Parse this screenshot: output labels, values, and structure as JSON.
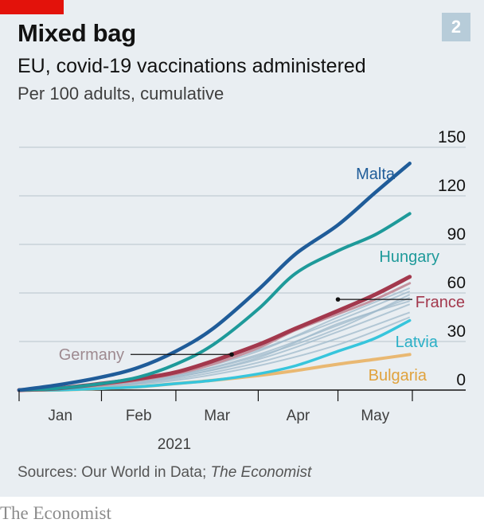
{
  "header": {
    "title": "Mixed bag",
    "chart_number": "2",
    "subtitle": "EU, covid-19 vaccinations administered",
    "units": "Per 100 adults, cumulative"
  },
  "footer": {
    "source_prefix": "Sources: Our World in Data; ",
    "source_italic": "The Economist",
    "brand": "The Economist"
  },
  "colors": {
    "brand_red": "#e3120b",
    "Malta": "#1f5c99",
    "Hungary": "#1e9a9a",
    "France": "#a3384d",
    "France_label": "#a3384d",
    "Germany": "#c4939f",
    "Germany_label": "#9e8a90",
    "Latvia": "#37c5dc",
    "Latvia_label": "#2ab0c7",
    "Bulgaria": "#e9b872",
    "Bulgaria_label": "#e0a23d",
    "others": "#9fb9cb"
  },
  "chart_data": {
    "type": "line",
    "x_axis": {
      "ticks": [
        "Jan",
        "Feb",
        "Mar",
        "Apr",
        "May"
      ],
      "year_label": "2021"
    },
    "ylim": [
      0,
      150
    ],
    "yticks": [
      0,
      30,
      60,
      90,
      120,
      150
    ],
    "grid": true,
    "series": [
      {
        "name": "Malta",
        "points": [
          [
            "2021-01-01",
            0
          ],
          [
            "2021-01-15",
            3
          ],
          [
            "2021-02-01",
            8
          ],
          [
            "2021-02-15",
            14
          ],
          [
            "2021-03-01",
            24
          ],
          [
            "2021-03-15",
            38
          ],
          [
            "2021-04-01",
            62
          ],
          [
            "2021-04-15",
            84
          ],
          [
            "2021-05-01",
            102
          ],
          [
            "2021-05-15",
            122
          ],
          [
            "2021-05-28",
            140
          ]
        ]
      },
      {
        "name": "Hungary",
        "points": [
          [
            "2021-01-01",
            0
          ],
          [
            "2021-01-15",
            1
          ],
          [
            "2021-02-01",
            4
          ],
          [
            "2021-02-15",
            8
          ],
          [
            "2021-03-01",
            16
          ],
          [
            "2021-03-15",
            28
          ],
          [
            "2021-04-01",
            50
          ],
          [
            "2021-04-15",
            72
          ],
          [
            "2021-05-01",
            86
          ],
          [
            "2021-05-15",
            96
          ],
          [
            "2021-05-28",
            109
          ]
        ]
      },
      {
        "name": "France",
        "points": [
          [
            "2021-01-01",
            0
          ],
          [
            "2021-01-15",
            1
          ],
          [
            "2021-02-01",
            4
          ],
          [
            "2021-02-15",
            7
          ],
          [
            "2021-03-01",
            11
          ],
          [
            "2021-03-15",
            18
          ],
          [
            "2021-04-01",
            28
          ],
          [
            "2021-04-15",
            38
          ],
          [
            "2021-05-01",
            49
          ],
          [
            "2021-05-15",
            59
          ],
          [
            "2021-05-28",
            70
          ]
        ]
      },
      {
        "name": "Germany",
        "points": [
          [
            "2021-01-01",
            0
          ],
          [
            "2021-01-15",
            1
          ],
          [
            "2021-02-01",
            3
          ],
          [
            "2021-02-15",
            6
          ],
          [
            "2021-03-01",
            10
          ],
          [
            "2021-03-15",
            16
          ],
          [
            "2021-04-01",
            26
          ],
          [
            "2021-04-15",
            37
          ],
          [
            "2021-05-01",
            47
          ],
          [
            "2021-05-15",
            56
          ],
          [
            "2021-05-28",
            66
          ]
        ]
      },
      {
        "name": "Latvia",
        "points": [
          [
            "2021-01-01",
            0
          ],
          [
            "2021-01-15",
            0
          ],
          [
            "2021-02-01",
            1
          ],
          [
            "2021-02-15",
            2
          ],
          [
            "2021-03-01",
            4
          ],
          [
            "2021-03-15",
            6
          ],
          [
            "2021-04-01",
            10
          ],
          [
            "2021-04-15",
            15
          ],
          [
            "2021-05-01",
            24
          ],
          [
            "2021-05-15",
            32
          ],
          [
            "2021-05-28",
            43
          ]
        ]
      },
      {
        "name": "Bulgaria",
        "points": [
          [
            "2021-01-01",
            0
          ],
          [
            "2021-01-15",
            0
          ],
          [
            "2021-02-01",
            1
          ],
          [
            "2021-02-15",
            2
          ],
          [
            "2021-03-01",
            4
          ],
          [
            "2021-03-15",
            6
          ],
          [
            "2021-04-01",
            9
          ],
          [
            "2021-04-15",
            12
          ],
          [
            "2021-05-01",
            16
          ],
          [
            "2021-05-15",
            19
          ],
          [
            "2021-05-28",
            22
          ]
        ]
      }
    ],
    "other_series": [
      {
        "points": [
          [
            "2021-01-01",
            0
          ],
          [
            "2021-02-01",
            4
          ],
          [
            "2021-03-01",
            11
          ],
          [
            "2021-04-01",
            25
          ],
          [
            "2021-05-01",
            43
          ],
          [
            "2021-05-28",
            61
          ]
        ]
      },
      {
        "points": [
          [
            "2021-01-01",
            0
          ],
          [
            "2021-02-01",
            3
          ],
          [
            "2021-03-01",
            9
          ],
          [
            "2021-04-01",
            22
          ],
          [
            "2021-05-01",
            40
          ],
          [
            "2021-05-28",
            57
          ]
        ]
      },
      {
        "points": [
          [
            "2021-01-01",
            0
          ],
          [
            "2021-02-01",
            3
          ],
          [
            "2021-03-01",
            10
          ],
          [
            "2021-04-01",
            24
          ],
          [
            "2021-05-01",
            45
          ],
          [
            "2021-05-28",
            63
          ]
        ]
      },
      {
        "points": [
          [
            "2021-01-01",
            0
          ],
          [
            "2021-02-01",
            2
          ],
          [
            "2021-03-01",
            8
          ],
          [
            "2021-04-01",
            19
          ],
          [
            "2021-05-01",
            36
          ],
          [
            "2021-05-28",
            53
          ]
        ]
      },
      {
        "points": [
          [
            "2021-01-01",
            0
          ],
          [
            "2021-02-01",
            2
          ],
          [
            "2021-03-01",
            7
          ],
          [
            "2021-04-01",
            17
          ],
          [
            "2021-05-01",
            32
          ],
          [
            "2021-05-28",
            48
          ]
        ]
      },
      {
        "points": [
          [
            "2021-01-01",
            0
          ],
          [
            "2021-02-01",
            3
          ],
          [
            "2021-03-01",
            9
          ],
          [
            "2021-04-01",
            21
          ],
          [
            "2021-05-01",
            38
          ],
          [
            "2021-05-28",
            59
          ]
        ]
      },
      {
        "points": [
          [
            "2021-01-01",
            0
          ],
          [
            "2021-02-01",
            2
          ],
          [
            "2021-03-01",
            8
          ],
          [
            "2021-04-01",
            20
          ],
          [
            "2021-05-01",
            41
          ],
          [
            "2021-05-28",
            55
          ]
        ]
      },
      {
        "points": [
          [
            "2021-01-01",
            0
          ],
          [
            "2021-02-01",
            2
          ],
          [
            "2021-03-01",
            6
          ],
          [
            "2021-04-01",
            15
          ],
          [
            "2021-05-01",
            28
          ],
          [
            "2021-05-28",
            45
          ]
        ]
      }
    ],
    "annotations": [
      {
        "series": "Germany",
        "at": [
          "2021-03-22",
          22
        ],
        "label_side": "left"
      },
      {
        "series": "France",
        "at": [
          "2021-05-01",
          56
        ],
        "label_side": "right"
      }
    ]
  }
}
